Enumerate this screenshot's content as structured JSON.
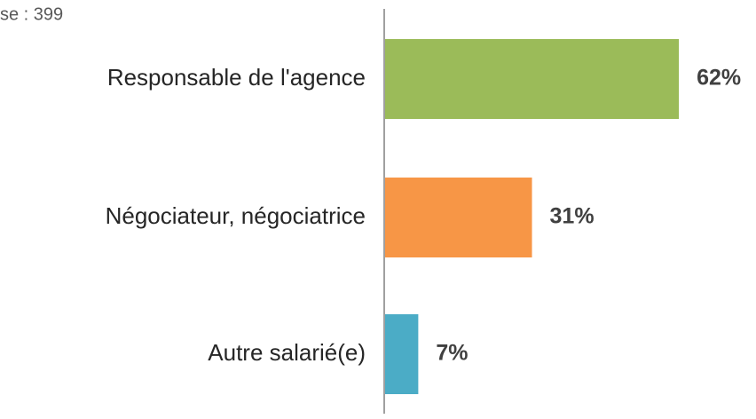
{
  "chart_data": {
    "type": "bar",
    "orientation": "horizontal",
    "note": "se : 399",
    "categories": [
      "Responsable  de l'agence",
      "Négociateur, négociatrice",
      "Autre salarié(e)"
    ],
    "values": [
      62,
      31,
      7
    ],
    "value_labels": [
      "62%",
      "31%",
      "7%"
    ],
    "colors": [
      "#9bbb59",
      "#f79646",
      "#4bacc6"
    ]
  }
}
